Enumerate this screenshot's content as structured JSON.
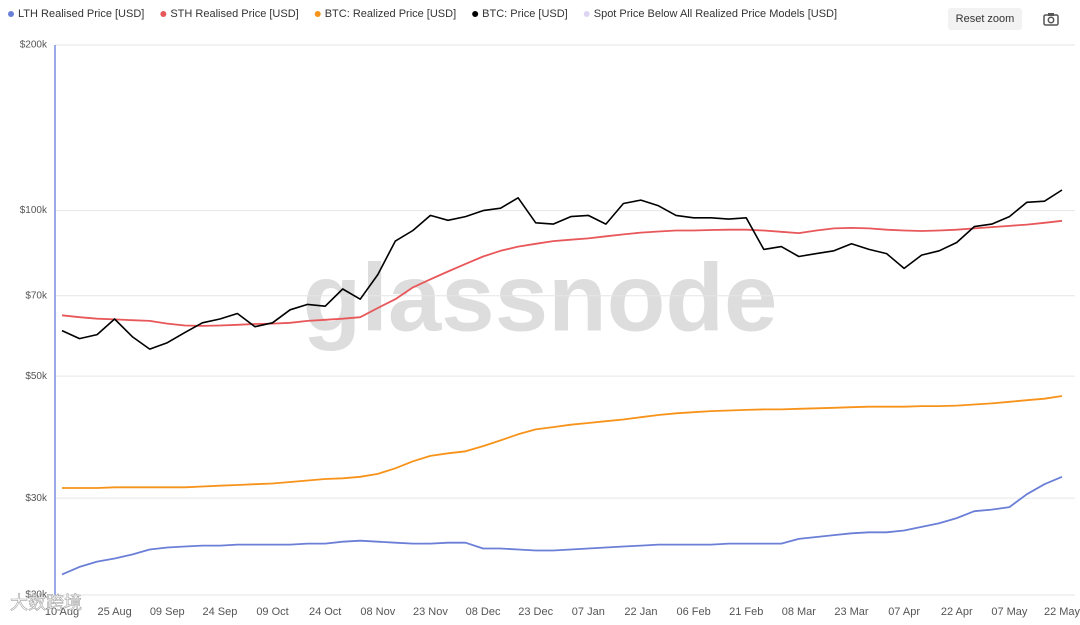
{
  "chart_data": {
    "type": "line",
    "log_scale": true,
    "grid": true,
    "legend": "top-left",
    "watermark": "glassnode",
    "corner_watermark": "大数跨境",
    "button": "Reset zoom",
    "categories": [
      "10 Aug",
      null,
      null,
      "25 Aug",
      null,
      null,
      "09 Sep",
      null,
      null,
      "24 Sep",
      null,
      null,
      "09 Oct",
      null,
      null,
      "24 Oct",
      null,
      null,
      "08 Nov",
      null,
      null,
      "23 Nov",
      null,
      null,
      "08 Dec",
      null,
      null,
      "23 Dec",
      null,
      null,
      "07 Jan",
      null,
      null,
      "22 Jan",
      null,
      null,
      "06 Feb",
      null,
      null,
      "21 Feb",
      null,
      null,
      "08 Mar",
      null,
      null,
      "23 Mar",
      null,
      null,
      "07 Apr",
      null,
      null,
      "22 Apr",
      null,
      null,
      "07 May",
      null,
      null,
      "22 May"
    ],
    "ylim": [
      20000,
      200000
    ],
    "yticks": [
      {
        "value": 20000,
        "label": "$20k"
      },
      {
        "value": 30000,
        "label": "$30k"
      },
      {
        "value": 50000,
        "label": "$50k"
      },
      {
        "value": 70000,
        "label": "$70k"
      },
      {
        "value": 100000,
        "label": "$100k"
      },
      {
        "value": 200000,
        "label": "$200k"
      }
    ],
    "series": [
      {
        "name": "LTH Realised Price [USD]",
        "color": "#6b7fd7",
        "values": [
          21800,
          22500,
          23000,
          23300,
          23700,
          24200,
          24400,
          24500,
          24600,
          24600,
          24700,
          24700,
          24700,
          24700,
          24800,
          24800,
          25000,
          25100,
          25000,
          24900,
          24800,
          24800,
          24900,
          24900,
          24300,
          24300,
          24200,
          24100,
          24100,
          24200,
          24300,
          24400,
          24500,
          24600,
          24700,
          24700,
          24700,
          24700,
          24800,
          24800,
          24800,
          24800,
          25300,
          25500,
          25700,
          25900,
          26000,
          26000,
          26200,
          26600,
          27000,
          27600,
          28400,
          28600,
          28900,
          30500,
          31800,
          32800
        ]
      },
      {
        "name": "STH Realised Price [USD]",
        "color": "#e8575a",
        "values": [
          64500,
          64000,
          63600,
          63400,
          63200,
          63000,
          62300,
          61800,
          61700,
          61800,
          62000,
          62200,
          62300,
          62500,
          63000,
          63300,
          63600,
          64000,
          66500,
          69000,
          72500,
          75000,
          77500,
          80000,
          82500,
          84500,
          86000,
          87000,
          88000,
          88500,
          89000,
          89800,
          90500,
          91200,
          91600,
          92000,
          92000,
          92200,
          92300,
          92300,
          92000,
          91500,
          91000,
          92000,
          92800,
          93000,
          92800,
          92300,
          92000,
          91800,
          92000,
          92300,
          92800,
          93300,
          93800,
          94300,
          95000,
          95800
        ]
      },
      {
        "name": "BTC: Realized Price [USD]",
        "color": "#f7931a",
        "values": [
          31300,
          31300,
          31300,
          31400,
          31400,
          31400,
          31400,
          31400,
          31500,
          31600,
          31700,
          31800,
          31900,
          32100,
          32300,
          32500,
          32600,
          32800,
          33200,
          34000,
          35000,
          35800,
          36200,
          36500,
          37300,
          38200,
          39200,
          40000,
          40400,
          40800,
          41100,
          41400,
          41700,
          42100,
          42500,
          42800,
          43000,
          43200,
          43300,
          43400,
          43500,
          43500,
          43600,
          43700,
          43800,
          43900,
          44000,
          44000,
          44000,
          44100,
          44100,
          44200,
          44400,
          44600,
          44900,
          45200,
          45500,
          46000
        ]
      },
      {
        "name": "BTC: Price [USD]",
        "color": "#000000",
        "values": [
          60500,
          58500,
          59500,
          63500,
          59000,
          56000,
          57500,
          60000,
          62500,
          63500,
          65000,
          61500,
          62500,
          66000,
          67500,
          67000,
          72000,
          69000,
          76500,
          88000,
          92000,
          98000,
          96000,
          97500,
          100000,
          101000,
          105500,
          95000,
          94500,
          97500,
          98000,
          94500,
          103000,
          104500,
          102000,
          98000,
          97000,
          97000,
          96500,
          97000,
          85000,
          86000,
          82500,
          83500,
          84500,
          87000,
          85000,
          83500,
          78500,
          83000,
          84500,
          87500,
          93500,
          94500,
          97500,
          103500,
          104000,
          109000
        ]
      },
      {
        "name": "Spot Price Below All Realized Price Models [USD]",
        "color": "#ddd5f3",
        "values": [
          null,
          null,
          null,
          null,
          null,
          null,
          null,
          null,
          null,
          null,
          null,
          null,
          null,
          null,
          null,
          null,
          null,
          null,
          null,
          null,
          null,
          null,
          null,
          null,
          null,
          null,
          null,
          null,
          null,
          null,
          null,
          null,
          null,
          null,
          null,
          null,
          null,
          null,
          null,
          null,
          null,
          null,
          null,
          null,
          null,
          null,
          null,
          null,
          null,
          null,
          null,
          null,
          null,
          null,
          null,
          null,
          null,
          null
        ]
      }
    ]
  }
}
